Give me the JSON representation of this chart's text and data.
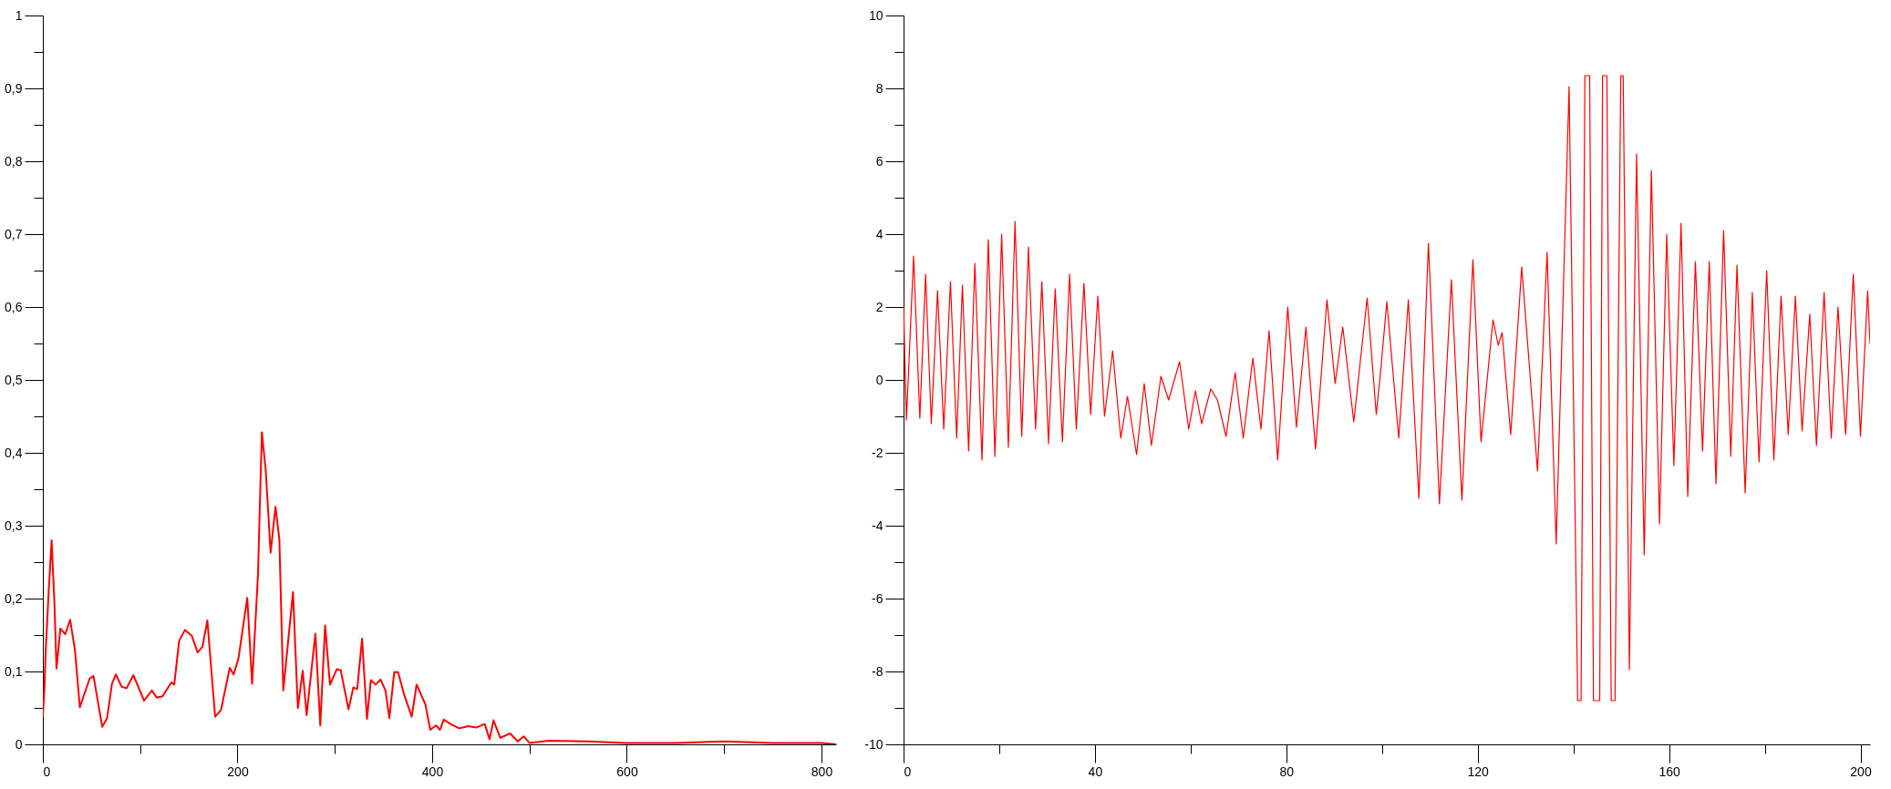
{
  "chart_data": [
    {
      "type": "line",
      "xlim": [
        0,
        815
      ],
      "ylim": [
        0,
        1
      ],
      "xticks": [
        0,
        {
          "value": 100,
          "label": null
        },
        200,
        {
          "value": 300,
          "label": null
        },
        400,
        {
          "value": 500,
          "label": null
        },
        600,
        {
          "value": 700,
          "label": null
        },
        800
      ],
      "yticks": [
        0,
        {
          "value": 0.05,
          "label": null
        },
        {
          "value": 0.1,
          "label": "0,1"
        },
        {
          "value": 0.15,
          "label": null
        },
        {
          "value": 0.2,
          "label": "0,2"
        },
        {
          "value": 0.25,
          "label": null
        },
        {
          "value": 0.3,
          "label": "0,3"
        },
        {
          "value": 0.35,
          "label": null
        },
        {
          "value": 0.4,
          "label": "0,4"
        },
        {
          "value": 0.45,
          "label": null
        },
        {
          "value": 0.5,
          "label": "0,5"
        },
        {
          "value": 0.55,
          "label": null
        },
        {
          "value": 0.6,
          "label": "0,6"
        },
        {
          "value": 0.65,
          "label": null
        },
        {
          "value": 0.7,
          "label": "0,7"
        },
        {
          "value": 0.75,
          "label": null
        },
        {
          "value": 0.8,
          "label": "0,8"
        },
        {
          "value": 0.85,
          "label": null
        },
        {
          "value": 0.9,
          "label": "0,9"
        },
        {
          "value": 0.95,
          "label": null
        },
        1
      ],
      "series": [
        {
          "color": "#ff0000",
          "x": [
            0,
            1.6,
            3,
            6,
            9,
            10,
            12,
            14,
            18,
            23,
            28,
            33,
            38,
            48,
            52,
            61,
            66,
            71,
            75,
            81,
            86,
            93,
            104,
            112,
            117,
            123,
            132,
            135,
            140,
            146,
            153,
            159,
            164,
            169,
            177,
            183,
            192,
            196,
            201,
            210,
            215,
            221,
            225,
            229,
            234,
            239,
            243,
            247,
            257,
            262,
            267,
            271,
            280,
            285,
            290,
            295,
            302,
            306,
            314,
            319,
            323,
            328,
            333,
            337,
            342,
            347,
            352,
            356,
            361,
            365,
            371,
            379,
            384,
            393,
            398,
            404,
            408,
            412,
            420,
            428,
            437,
            445,
            454,
            459,
            463,
            470,
            480,
            488,
            494,
            500,
            520,
            560,
            600,
            650,
            700,
            750,
            800,
            815
          ],
          "values": [
            0.038,
            0.077,
            0.13,
            0.21,
            0.28,
            0.25,
            0.19,
            0.104,
            0.159,
            0.151,
            0.171,
            0.129,
            0.051,
            0.09,
            0.094,
            0.024,
            0.036,
            0.083,
            0.096,
            0.079,
            0.077,
            0.095,
            0.06,
            0.074,
            0.064,
            0.066,
            0.085,
            0.082,
            0.142,
            0.157,
            0.149,
            0.126,
            0.134,
            0.17,
            0.038,
            0.047,
            0.105,
            0.096,
            0.118,
            0.201,
            0.083,
            0.232,
            0.428,
            0.376,
            0.263,
            0.326,
            0.281,
            0.074,
            0.209,
            0.05,
            0.101,
            0.04,
            0.152,
            0.026,
            0.163,
            0.082,
            0.103,
            0.102,
            0.048,
            0.078,
            0.076,
            0.145,
            0.035,
            0.088,
            0.082,
            0.089,
            0.074,
            0.036,
            0.099,
            0.099,
            0.069,
            0.038,
            0.082,
            0.055,
            0.02,
            0.026,
            0.02,
            0.034,
            0.027,
            0.022,
            0.025,
            0.023,
            0.028,
            0.007,
            0.033,
            0.009,
            0.015,
            0.004,
            0.011,
            0.002,
            0.005,
            0.004,
            0.002,
            0.002,
            0.004,
            0.002,
            0.002,
            0
          ]
        }
      ]
    },
    {
      "type": "line",
      "xlim": [
        0,
        202
      ],
      "ylim": [
        -10,
        10
      ],
      "xticks": [
        0,
        {
          "value": 20,
          "label": null
        },
        40,
        {
          "value": 60,
          "label": null
        },
        80,
        {
          "value": 100,
          "label": null
        },
        120,
        {
          "value": 140,
          "label": null
        },
        160,
        {
          "value": 180,
          "label": null
        },
        200
      ],
      "yticks": [
        -10,
        {
          "value": -9,
          "label": null
        },
        -8,
        {
          "value": -7,
          "label": null
        },
        -6,
        {
          "value": -5,
          "label": null
        },
        -4,
        {
          "value": -3,
          "label": null
        },
        -2,
        {
          "value": -1,
          "label": null
        },
        0,
        {
          "value": 1,
          "label": null
        },
        2,
        {
          "value": 3,
          "label": null
        },
        4,
        {
          "value": 5,
          "label": null
        },
        6,
        {
          "value": 7,
          "label": null
        },
        8,
        {
          "value": 9,
          "label": null
        },
        10
      ],
      "series": [
        {
          "color": "#ff0000",
          "x": [
            0,
            0.6,
            2.1,
            3.4,
            4.6,
            5.8,
            7.1,
            8.4,
            9.8,
            11.1,
            12.3,
            13.6,
            14.9,
            16.4,
            17.7,
            19.1,
            20.5,
            21.9,
            23.3,
            24.7,
            26.1,
            27.6,
            28.9,
            30.3,
            31.7,
            33.2,
            34.7,
            36.1,
            37.7,
            39.1,
            40.6,
            42,
            43.7,
            45.4,
            46.8,
            48.7,
            50.3,
            51.8,
            53.8,
            55.4,
            57.7,
            59.6,
            61,
            62.3,
            64.2,
            65.6,
            67.4,
            69.3,
            71,
            73,
            74.7,
            76.4,
            78.2,
            80.3,
            82.1,
            84.1,
            86.1,
            88.5,
            90.2,
            91.8,
            94.1,
            96.9,
            98.8,
            99.8,
            101,
            103.5,
            105.5,
            107.7,
            109.7,
            112,
            114.5,
            116.7,
            119,
            120.7,
            123.2,
            124.3,
            125.1,
            126.9,
            129.2,
            132.5,
            134.5,
            136.4,
            139.1,
            140.9,
            141.6,
            142.4,
            143.4,
            144.2,
            145.5,
            146.1,
            147,
            147.9,
            148.7,
            149.9,
            150.4,
            151.7,
            153.2,
            154.8,
            156.3,
            158,
            159.5,
            161,
            162.5,
            163.9,
            165.5,
            167,
            168.4,
            169.8,
            171.4,
            172.9,
            174.2,
            175.9,
            177.4,
            178.8,
            180.4,
            181.9,
            183.4,
            184.9,
            186.4,
            187.8,
            189.4,
            190.8,
            192.4,
            193.9,
            195.3,
            196.9,
            198.5,
            200,
            201.5,
            202
          ],
          "values": [
            2,
            -1.1,
            3.4,
            -1.05,
            2.9,
            -1.2,
            2.45,
            -1.35,
            2.7,
            -1.6,
            2.6,
            -1.95,
            3.2,
            -2.2,
            3.85,
            -2.1,
            4,
            -1.85,
            4.35,
            -1.55,
            3.65,
            -1.35,
            2.7,
            -1.75,
            2.5,
            -1.7,
            2.9,
            -1.35,
            2.65,
            -0.95,
            2.3,
            -1,
            0.8,
            -1.6,
            -0.45,
            -2.05,
            -0.1,
            -1.8,
            0.1,
            -0.55,
            0.5,
            -1.35,
            -0.3,
            -1.2,
            -0.25,
            -0.55,
            -1.55,
            0.2,
            -1.6,
            0.6,
            -1.35,
            1.35,
            -2.2,
            2,
            -1.3,
            1.45,
            -1.9,
            2.2,
            -0.1,
            1.45,
            -1.15,
            2.25,
            -0.95,
            0.35,
            2.15,
            -1.6,
            2.2,
            -3.25,
            3.75,
            -3.4,
            2.75,
            -3.3,
            3.3,
            -1.7,
            1.65,
            0.95,
            1.3,
            -1.5,
            3.1,
            -2.5,
            3.5,
            -4.5,
            8.05,
            -8.8,
            -8.8,
            8.35,
            8.35,
            -8.8,
            -8.8,
            8.35,
            8.35,
            -8.8,
            -8.8,
            8.35,
            8.35,
            -7.95,
            6.2,
            -4.8,
            5.75,
            -3.95,
            4,
            -2.35,
            4.3,
            -3.2,
            3.25,
            -1.95,
            3.25,
            -2.85,
            4.1,
            -2.1,
            3.15,
            -3.1,
            2.4,
            -2.25,
            3,
            -2.2,
            2.3,
            -1.5,
            2.3,
            -1.4,
            1.8,
            -1.8,
            2.4,
            -1.6,
            2,
            -1.5,
            2.9,
            -1.55,
            2.45,
            1
          ]
        }
      ]
    }
  ]
}
